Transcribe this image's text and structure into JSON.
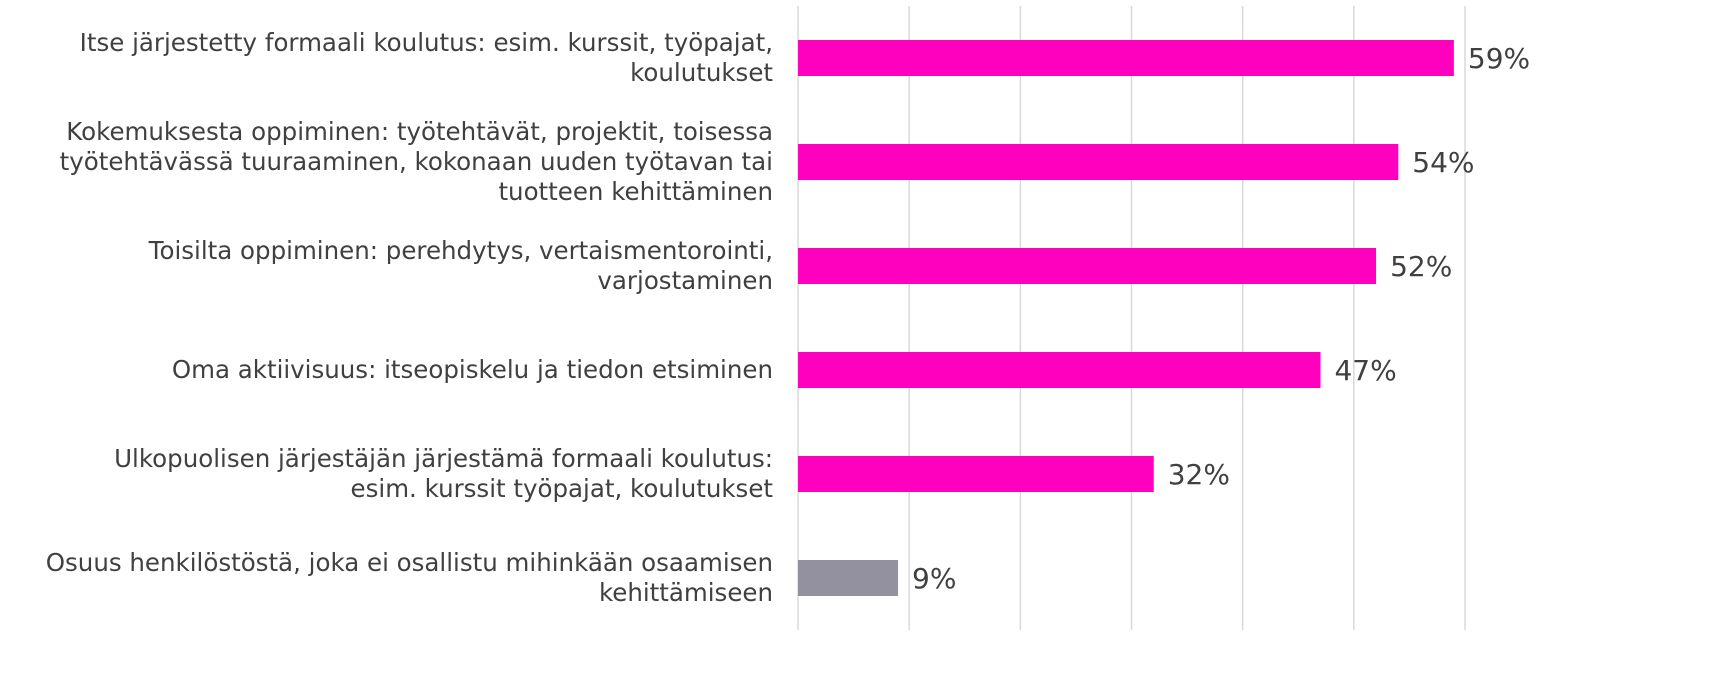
{
  "chart_data": {
    "type": "bar",
    "orientation": "horizontal",
    "categories": [
      "Itse järjestetty formaali koulutus: esim. kurssit, työpajat,\nkoulutukset",
      "Kokemuksesta oppiminen: työtehtävät, projektit, toisessa\ntyötehtävässä tuuraaminen, kokonaan uuden työtavan tai\ntuotteen kehittäminen",
      "Toisilta oppiminen: perehdytys, vertaismentorointi,\nvarjostaminen",
      "Oma aktiivisuus: itseopiskelu ja tiedon etsiminen",
      "Ulkopuolisen järjestäjän järjestämä formaali koulutus:\nesim. kurssit työpajat, koulutukset",
      "Osuus henkilöstöstä, joka ei osallistu mihinkään osaamisen\nkehittämiseen"
    ],
    "values": [
      59,
      54,
      52,
      47,
      32,
      9
    ],
    "value_labels": [
      "59%",
      "54%",
      "52%",
      "47%",
      "32%",
      "9%"
    ],
    "colors": [
      "#ff00bf",
      "#ff00bf",
      "#ff00bf",
      "#ff00bf",
      "#ff00bf",
      "#93909f"
    ],
    "xlim": [
      0,
      60
    ],
    "xticks": [
      0,
      10,
      20,
      30,
      40,
      50,
      60
    ],
    "grid": true
  }
}
